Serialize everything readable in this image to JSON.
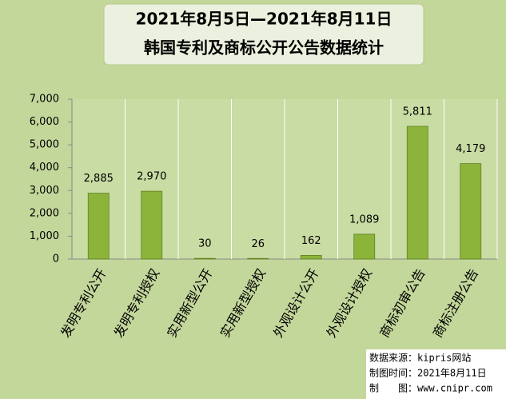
{
  "chart_data": {
    "type": "bar",
    "title": [
      "2021年8月5日—2021年8月11日",
      "韩国专利及商标公开公告数据统计"
    ],
    "categories": [
      "发明专利公开",
      "发明专利授权",
      "实用新型公开",
      "实用新型授权",
      "外观设计公开",
      "外观设计授权",
      "商标初审公告",
      "商标注册公告"
    ],
    "values": [
      2885,
      2970,
      30,
      26,
      162,
      1089,
      5811,
      4179
    ],
    "value_labels": [
      "2,885",
      "2,970",
      "30",
      "26",
      "162",
      "1,089",
      "5,811",
      "4,179"
    ],
    "color": "#8cb43a",
    "ylim": [
      0,
      7000
    ],
    "yticks": [
      0,
      {
        "value": 1000,
        "label": "1,000"
      },
      {
        "value": 2000,
        "label": "2,000"
      },
      {
        "value": 3000,
        "label": "3,000"
      },
      {
        "value": 4000,
        "label": "4,000"
      },
      {
        "value": 5000,
        "label": "5,000"
      },
      {
        "value": 6000,
        "label": "6,000"
      },
      {
        "value": 7000,
        "label": "7,000"
      }
    ],
    "source": [
      "数据来源：kipris网站",
      "制图时间：2021年8月11日",
      "制　　图：www.cnipr.com"
    ]
  }
}
